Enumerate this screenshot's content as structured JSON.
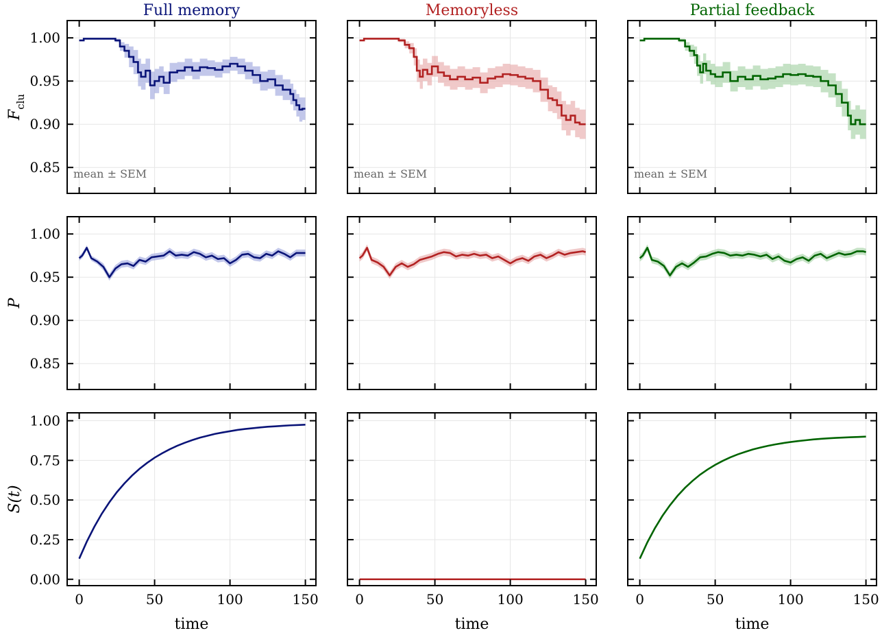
{
  "chart_data": {
    "type": "line",
    "layout": "3x3 grid, shared x axis per column, shared y axis per row",
    "columns": [
      {
        "title": "Full memory",
        "color": "#0a1478",
        "band_color": "#9aa2dc"
      },
      {
        "title": "Memoryless",
        "color": "#b22222",
        "band_color": "#e6a5a5"
      },
      {
        "title": "Partial feedback",
        "color": "#006400",
        "band_color": "#9fcf9f"
      }
    ],
    "x": {
      "label": "time",
      "ticks": [
        "0",
        "50",
        "100",
        "150"
      ],
      "lim": [
        -8,
        157
      ]
    },
    "grid": true,
    "rows": [
      {
        "ylabel_main": "F",
        "ylabel_sub": "clu",
        "ylim": [
          0.82,
          1.02
        ],
        "ticks": [
          "0.85",
          "0.90",
          "0.95",
          "1.00"
        ],
        "annotation": "mean ± SEM",
        "band": "mean ± SEM",
        "panels": [
          {
            "column": "Full memory",
            "step_x": [
              0,
              3,
              16,
              24,
              27,
              30,
              33,
              36,
              39,
              41,
              44,
              47,
              50,
              53,
              56,
              60,
              65,
              70,
              75,
              80,
              85,
              90,
              95,
              100,
              105,
              110,
              115,
              120,
              125,
              130,
              135,
              140,
              142,
              144,
              146,
              148,
              150
            ],
            "mean": [
              0.997,
              0.999,
              0.999,
              0.997,
              0.99,
              0.985,
              0.978,
              0.972,
              0.96,
              0.955,
              0.962,
              0.945,
              0.95,
              0.955,
              0.948,
              0.96,
              0.962,
              0.966,
              0.962,
              0.966,
              0.965,
              0.963,
              0.967,
              0.97,
              0.967,
              0.962,
              0.957,
              0.95,
              0.952,
              0.945,
              0.94,
              0.935,
              0.928,
              0.922,
              0.917,
              0.918,
              0.918
            ],
            "sem": [
              0.001,
              0.001,
              0.001,
              0.002,
              0.005,
              0.008,
              0.012,
              0.014,
              0.016,
              0.015,
              0.014,
              0.016,
              0.014,
              0.012,
              0.013,
              0.011,
              0.01,
              0.01,
              0.01,
              0.01,
              0.009,
              0.009,
              0.008,
              0.008,
              0.009,
              0.01,
              0.01,
              0.011,
              0.011,
              0.012,
              0.012,
              0.012,
              0.012,
              0.013,
              0.014,
              0.013,
              0.013
            ]
          },
          {
            "column": "Memoryless",
            "step_x": [
              0,
              3,
              16,
              26,
              30,
              33,
              36,
              38,
              40,
              42,
              45,
              48,
              52,
              56,
              60,
              65,
              70,
              75,
              80,
              85,
              90,
              95,
              100,
              105,
              110,
              115,
              120,
              125,
              128,
              131,
              134,
              137,
              140,
              143,
              146,
              150
            ],
            "mean": [
              0.997,
              0.999,
              0.999,
              0.997,
              0.992,
              0.988,
              0.978,
              0.962,
              0.955,
              0.963,
              0.958,
              0.967,
              0.96,
              0.956,
              0.952,
              0.955,
              0.952,
              0.954,
              0.948,
              0.953,
              0.955,
              0.958,
              0.957,
              0.955,
              0.953,
              0.95,
              0.94,
              0.93,
              0.928,
              0.922,
              0.91,
              0.905,
              0.91,
              0.902,
              0.9,
              0.9
            ],
            "sem": [
              0.001,
              0.001,
              0.001,
              0.002,
              0.004,
              0.006,
              0.01,
              0.013,
              0.014,
              0.013,
              0.013,
              0.012,
              0.012,
              0.012,
              0.012,
              0.012,
              0.012,
              0.012,
              0.012,
              0.012,
              0.012,
              0.012,
              0.012,
              0.012,
              0.012,
              0.013,
              0.014,
              0.015,
              0.015,
              0.016,
              0.017,
              0.018,
              0.017,
              0.017,
              0.017,
              0.017
            ]
          },
          {
            "column": "Partial feedback",
            "step_x": [
              0,
              3,
              16,
              26,
              30,
              33,
              36,
              38,
              40,
              42,
              44,
              47,
              50,
              55,
              60,
              65,
              70,
              75,
              80,
              85,
              90,
              95,
              100,
              105,
              110,
              115,
              120,
              125,
              130,
              134,
              138,
              140,
              143,
              146,
              150
            ],
            "mean": [
              0.997,
              0.999,
              0.999,
              0.997,
              0.99,
              0.985,
              0.98,
              0.968,
              0.96,
              0.97,
              0.962,
              0.958,
              0.955,
              0.96,
              0.95,
              0.955,
              0.952,
              0.956,
              0.952,
              0.953,
              0.955,
              0.958,
              0.957,
              0.958,
              0.956,
              0.955,
              0.95,
              0.945,
              0.935,
              0.925,
              0.91,
              0.9,
              0.905,
              0.9,
              0.9
            ],
            "sem": [
              0.001,
              0.001,
              0.001,
              0.002,
              0.005,
              0.007,
              0.01,
              0.012,
              0.013,
              0.012,
              0.012,
              0.012,
              0.012,
              0.012,
              0.012,
              0.012,
              0.012,
              0.012,
              0.012,
              0.012,
              0.012,
              0.012,
              0.012,
              0.012,
              0.012,
              0.012,
              0.013,
              0.014,
              0.015,
              0.016,
              0.017,
              0.017,
              0.017,
              0.017,
              0.017
            ]
          }
        ]
      },
      {
        "ylabel_main": "P",
        "ylabel_sub": "",
        "ylim": [
          0.82,
          1.02
        ],
        "ticks": [
          "0.85",
          "0.90",
          "0.95",
          "1.00"
        ],
        "annotation": "",
        "band": "mean ± SEM",
        "panels": [
          {
            "column": "Full memory",
            "x": [
              0,
              2,
              5,
              8,
              12,
              16,
              20,
              24,
              28,
              32,
              36,
              40,
              44,
              48,
              52,
              56,
              60,
              64,
              68,
              72,
              76,
              80,
              84,
              88,
              92,
              96,
              100,
              104,
              108,
              112,
              116,
              120,
              124,
              128,
              132,
              136,
              140,
              144,
              148,
              150
            ],
            "mean": [
              0.972,
              0.975,
              0.984,
              0.972,
              0.968,
              0.962,
              0.95,
              0.96,
              0.965,
              0.966,
              0.963,
              0.97,
              0.968,
              0.973,
              0.974,
              0.975,
              0.98,
              0.975,
              0.976,
              0.975,
              0.979,
              0.977,
              0.973,
              0.975,
              0.971,
              0.972,
              0.966,
              0.97,
              0.976,
              0.977,
              0.973,
              0.972,
              0.977,
              0.975,
              0.98,
              0.977,
              0.973,
              0.978,
              0.978,
              0.978
            ],
            "sem": [
              0.003,
              0.003,
              0.003,
              0.003,
              0.003,
              0.004,
              0.004,
              0.004,
              0.004,
              0.004,
              0.004,
              0.004,
              0.004,
              0.004,
              0.004,
              0.004,
              0.004,
              0.004,
              0.004,
              0.004,
              0.004,
              0.004,
              0.004,
              0.004,
              0.004,
              0.004,
              0.004,
              0.004,
              0.004,
              0.004,
              0.004,
              0.004,
              0.004,
              0.004,
              0.004,
              0.004,
              0.004,
              0.004,
              0.004,
              0.004
            ]
          },
          {
            "column": "Memoryless",
            "x": [
              0,
              2,
              5,
              8,
              12,
              16,
              20,
              24,
              28,
              32,
              36,
              40,
              44,
              48,
              52,
              56,
              60,
              64,
              68,
              72,
              76,
              80,
              84,
              88,
              92,
              96,
              100,
              104,
              108,
              112,
              116,
              120,
              124,
              128,
              132,
              136,
              140,
              144,
              148,
              150
            ],
            "mean": [
              0.972,
              0.975,
              0.984,
              0.97,
              0.967,
              0.962,
              0.952,
              0.962,
              0.966,
              0.962,
              0.965,
              0.97,
              0.972,
              0.974,
              0.977,
              0.979,
              0.978,
              0.974,
              0.976,
              0.975,
              0.977,
              0.975,
              0.976,
              0.972,
              0.974,
              0.97,
              0.966,
              0.97,
              0.972,
              0.969,
              0.974,
              0.976,
              0.972,
              0.975,
              0.979,
              0.976,
              0.978,
              0.979,
              0.98,
              0.979
            ],
            "sem": [
              0.004,
              0.004,
              0.004,
              0.004,
              0.004,
              0.004,
              0.004,
              0.004,
              0.004,
              0.004,
              0.004,
              0.004,
              0.004,
              0.004,
              0.004,
              0.004,
              0.004,
              0.004,
              0.004,
              0.004,
              0.004,
              0.004,
              0.004,
              0.004,
              0.004,
              0.004,
              0.004,
              0.004,
              0.004,
              0.004,
              0.004,
              0.004,
              0.004,
              0.004,
              0.004,
              0.004,
              0.004,
              0.004,
              0.004,
              0.004
            ]
          },
          {
            "column": "Partial feedback",
            "x": [
              0,
              2,
              5,
              8,
              12,
              16,
              20,
              24,
              28,
              32,
              36,
              40,
              44,
              48,
              52,
              56,
              60,
              64,
              68,
              72,
              76,
              80,
              84,
              88,
              92,
              96,
              100,
              104,
              108,
              112,
              116,
              120,
              124,
              128,
              132,
              136,
              140,
              144,
              148,
              150
            ],
            "mean": [
              0.972,
              0.975,
              0.984,
              0.97,
              0.968,
              0.963,
              0.952,
              0.962,
              0.966,
              0.962,
              0.967,
              0.973,
              0.974,
              0.977,
              0.979,
              0.978,
              0.975,
              0.976,
              0.975,
              0.977,
              0.976,
              0.974,
              0.976,
              0.971,
              0.974,
              0.969,
              0.967,
              0.971,
              0.973,
              0.969,
              0.975,
              0.977,
              0.972,
              0.975,
              0.978,
              0.976,
              0.977,
              0.98,
              0.98,
              0.979
            ],
            "sem": [
              0.004,
              0.004,
              0.004,
              0.004,
              0.004,
              0.004,
              0.004,
              0.004,
              0.004,
              0.004,
              0.004,
              0.004,
              0.004,
              0.004,
              0.004,
              0.004,
              0.004,
              0.004,
              0.004,
              0.004,
              0.004,
              0.004,
              0.004,
              0.004,
              0.004,
              0.004,
              0.004,
              0.004,
              0.004,
              0.004,
              0.004,
              0.004,
              0.004,
              0.004,
              0.004,
              0.004,
              0.004,
              0.004,
              0.004,
              0.004
            ]
          }
        ]
      },
      {
        "ylabel_main": "S(t)",
        "ylabel_sub": "",
        "ylim": [
          -0.04,
          1.05
        ],
        "ticks": [
          "0.00",
          "0.25",
          "0.50",
          "0.75",
          "1.00"
        ],
        "annotation": "",
        "band": "",
        "panels": [
          {
            "column": "Full memory",
            "x": [
              0,
              5,
              10,
              15,
              20,
              25,
              30,
              35,
              40,
              45,
              50,
              55,
              60,
              65,
              70,
              75,
              80,
              85,
              90,
              95,
              100,
              105,
              110,
              115,
              120,
              125,
              130,
              135,
              140,
              145,
              150
            ],
            "y": [
              0.13,
              0.237,
              0.331,
              0.414,
              0.486,
              0.55,
              0.605,
              0.654,
              0.697,
              0.734,
              0.767,
              0.795,
              0.82,
              0.842,
              0.861,
              0.878,
              0.893,
              0.905,
              0.917,
              0.926,
              0.934,
              0.942,
              0.948,
              0.953,
              0.958,
              0.962,
              0.965,
              0.968,
              0.971,
              0.973,
              0.975
            ]
          },
          {
            "column": "Memoryless",
            "x": [
              0,
              150
            ],
            "y": [
              0.0,
              0.0
            ]
          },
          {
            "column": "Partial feedback",
            "x": [
              0,
              5,
              10,
              15,
              20,
              25,
              30,
              35,
              40,
              45,
              50,
              55,
              60,
              65,
              70,
              75,
              80,
              85,
              90,
              95,
              100,
              105,
              110,
              115,
              120,
              125,
              130,
              135,
              140,
              145,
              150
            ],
            "y": [
              0.13,
              0.233,
              0.322,
              0.4,
              0.467,
              0.526,
              0.577,
              0.621,
              0.66,
              0.693,
              0.722,
              0.747,
              0.769,
              0.788,
              0.804,
              0.819,
              0.831,
              0.842,
              0.851,
              0.859,
              0.866,
              0.872,
              0.877,
              0.882,
              0.886,
              0.889,
              0.892,
              0.894,
              0.896,
              0.898,
              0.9
            ]
          }
        ]
      }
    ]
  }
}
